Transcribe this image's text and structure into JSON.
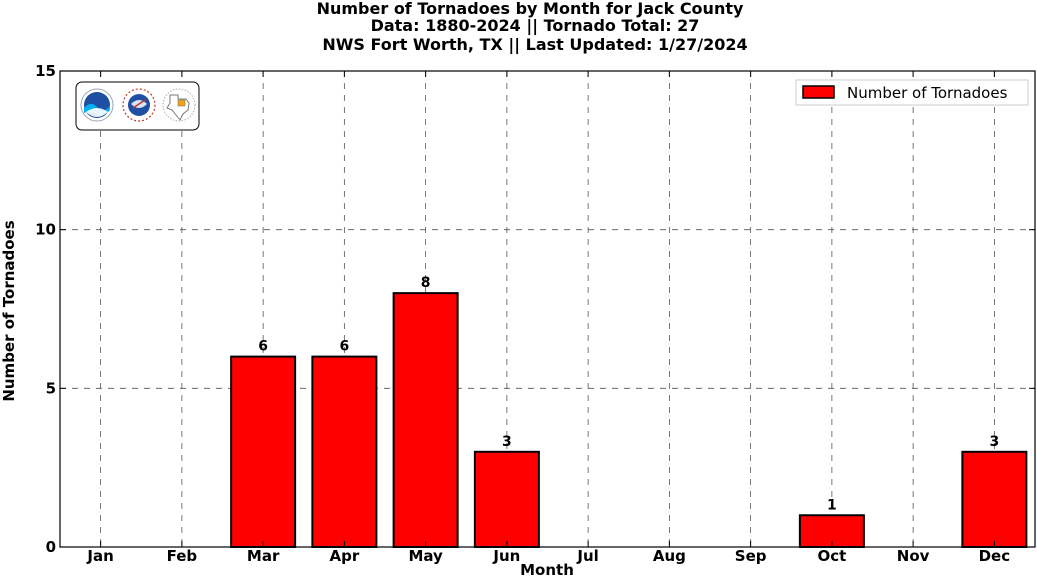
{
  "chart_data": {
    "type": "bar",
    "title_lines": [
      "Number of Tornadoes by Month for Jack County",
      "Data: 1880-2024 || Tornado Total: 27",
      "NWS Fort Worth, TX || Last Updated: 1/27/2024"
    ],
    "xlabel": "Month",
    "ylabel": "Number of Tornadoes",
    "categories": [
      "Jan",
      "Feb",
      "Mar",
      "Apr",
      "May",
      "Jun",
      "Jul",
      "Aug",
      "Sep",
      "Oct",
      "Nov",
      "Dec"
    ],
    "series": [
      {
        "name": "Number of Tornadoes",
        "color": "#ff0000",
        "values": [
          0,
          0,
          6,
          6,
          8,
          3,
          0,
          0,
          0,
          1,
          0,
          3
        ]
      }
    ],
    "ylim": [
      0,
      15
    ],
    "yticks": [
      0,
      5,
      10,
      15
    ],
    "grid": true,
    "legend_position": "top-right",
    "logo_icons": [
      "noaa-logo-icon",
      "nws-logo-icon",
      "texas-map-logo-icon"
    ]
  }
}
